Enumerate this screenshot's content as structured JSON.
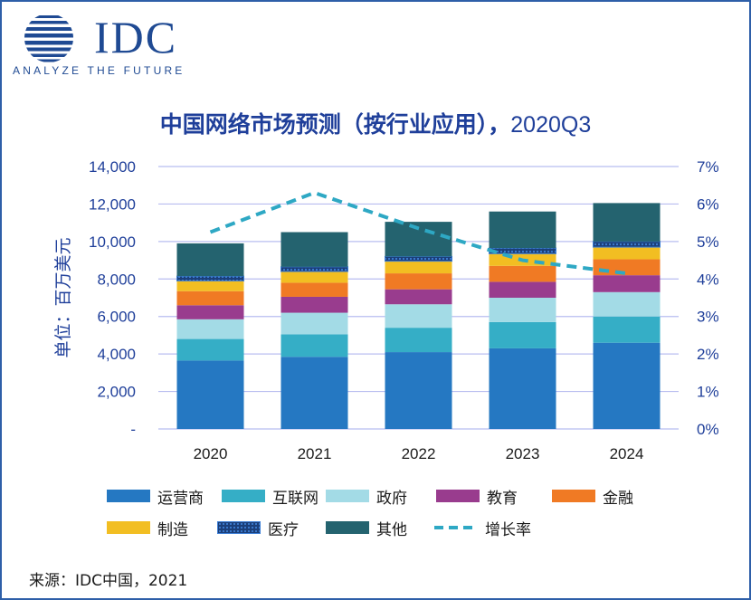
{
  "logo": {
    "brand": "IDC",
    "tagline": "ANALYZE THE FUTURE"
  },
  "title_main": "中国网络市场预测（按行业应用），",
  "title_period": "2020Q3",
  "source": "来源：IDC中国，2021",
  "colors": {
    "运营商": "#2578c2",
    "互联网": "#35aec6",
    "政府": "#a3dbe6",
    "教育": "#993c8e",
    "金融": "#f07a24",
    "制造": "#f2be22",
    "医疗": "#1b3f7a",
    "其他": "#24636f",
    "增长率": "#2ea8c4",
    "axis_text": "#1f3f9a",
    "grid": "#b8bdf0"
  },
  "chart_data": {
    "type": "bar",
    "stacked": true,
    "categories": [
      "2020",
      "2021",
      "2022",
      "2023",
      "2024"
    ],
    "ylabel": "单位：百万美元",
    "ylim": [
      0,
      14000
    ],
    "y_ticks": [
      "-",
      "2,000",
      "4,000",
      "6,000",
      "8,000",
      "10,000",
      "12,000",
      "14,000"
    ],
    "y2lim": [
      0,
      7
    ],
    "y2_ticks": [
      "0%",
      "1%",
      "2%",
      "3%",
      "4%",
      "5%",
      "6%",
      "7%"
    ],
    "grid": true,
    "legend_position": "bottom",
    "series": [
      {
        "name": "运营商",
        "values": [
          3650,
          3850,
          4100,
          4300,
          4600
        ]
      },
      {
        "name": "互联网",
        "values": [
          1150,
          1200,
          1300,
          1400,
          1400
        ]
      },
      {
        "name": "政府",
        "values": [
          1050,
          1150,
          1250,
          1300,
          1300
        ]
      },
      {
        "name": "教育",
        "values": [
          750,
          850,
          800,
          850,
          900
        ]
      },
      {
        "name": "金融",
        "values": [
          750,
          750,
          850,
          850,
          850
        ]
      },
      {
        "name": "制造",
        "values": [
          550,
          600,
          650,
          650,
          650
        ]
      },
      {
        "name": "医疗",
        "values": [
          250,
          250,
          250,
          300,
          300
        ]
      },
      {
        "name": "其他",
        "values": [
          1750,
          1850,
          1850,
          1950,
          2050
        ]
      }
    ],
    "line": {
      "name": "增长率",
      "axis": "secondary",
      "values": [
        5.25,
        6.3,
        5.35,
        4.5,
        4.15
      ]
    }
  }
}
